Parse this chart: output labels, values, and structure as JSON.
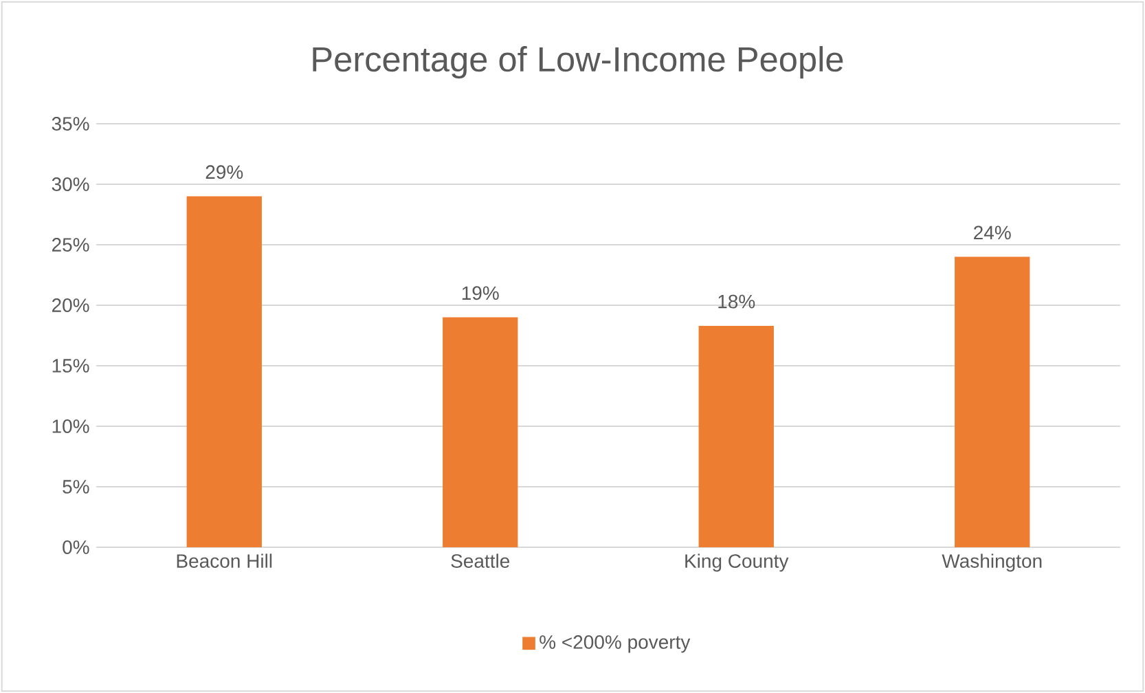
{
  "chart_data": {
    "type": "bar",
    "title": "Percentage of Low-Income People",
    "categories": [
      "Beacon Hill",
      "Seattle",
      "King County",
      "Washington"
    ],
    "series": [
      {
        "name": "% <200% poverty",
        "color": "#ed7d31",
        "values": [
          29,
          19,
          18.3,
          24
        ],
        "value_labels": [
          "29%",
          "19%",
          "18%",
          "24%"
        ]
      }
    ],
    "ylim": [
      0,
      35
    ],
    "yticks": [
      {
        "value": 0,
        "label": "0%"
      },
      {
        "value": 5,
        "label": "5%"
      },
      {
        "value": 10,
        "label": "10%"
      },
      {
        "value": 15,
        "label": "15%"
      },
      {
        "value": 20,
        "label": "20%"
      },
      {
        "value": 25,
        "label": "25%"
      },
      {
        "value": 30,
        "label": "30%"
      },
      {
        "value": 35,
        "label": "35%"
      }
    ],
    "grid": "y",
    "legend": "bottom"
  }
}
